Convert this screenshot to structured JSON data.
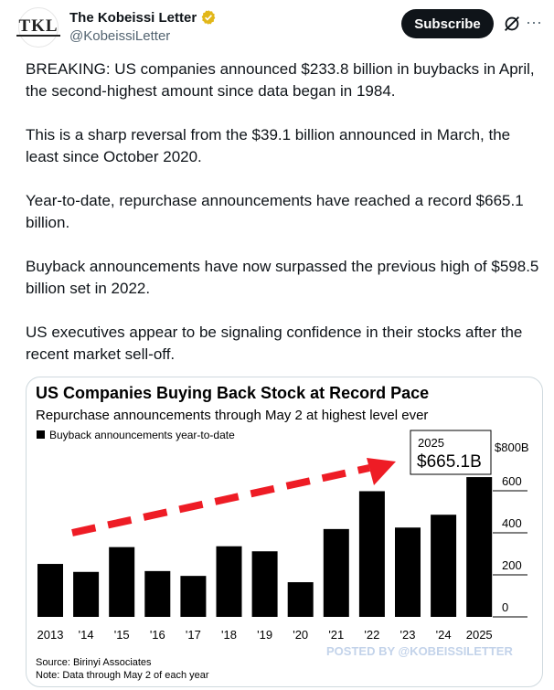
{
  "account": {
    "display_name": "The Kobeissi Letter",
    "handle": "@KobeissiLetter",
    "avatar_text": "TKL"
  },
  "actions": {
    "subscribe_label": "Subscribe",
    "more_label": "···"
  },
  "tweet": {
    "paragraphs": [
      "BREAKING: US companies announced $233.8 billion in buybacks in April, the second-highest amount since data began in 1984.",
      "This is a sharp reversal from the $39.1 billion announced in March, the least since October 2020.",
      "Year-to-date, repurchase announcements have reached a record $665.1 billion.",
      "Buyback announcements have now surpassed the previous high of $598.5 billion set in 2022.",
      "US executives appear to be signaling confidence in their stocks after the recent market sell-off."
    ]
  },
  "chart_data": {
    "type": "bar",
    "title": "US Companies Buying Back Stock at Record Pace",
    "subtitle": "Repurchase announcements through May 2 at highest level ever",
    "legend": "Buyback announcements year-to-date",
    "categories": [
      "2013",
      "'14",
      "'15",
      "'16",
      "'17",
      "'18",
      "'19",
      "'20",
      "'21",
      "'22",
      "'23",
      "'24",
      "2025"
    ],
    "values": [
      252,
      214,
      332,
      218,
      195,
      336,
      312,
      165,
      418,
      598,
      425,
      486,
      665
    ],
    "y_unit_label": "$800B",
    "y_ticks": [
      0,
      200,
      400,
      600
    ],
    "ylim": [
      0,
      800
    ],
    "callout_year": "2025",
    "callout_value": "$665.1B",
    "source": "Source: Birinyi Associates",
    "note": "Note: Data through May 2 of each year",
    "watermark": "POSTED BY @KOBEISSILETTER",
    "colors": {
      "bar": "#000000",
      "arrow": "#ee1c25",
      "watermark": "#c3d3ea"
    }
  }
}
